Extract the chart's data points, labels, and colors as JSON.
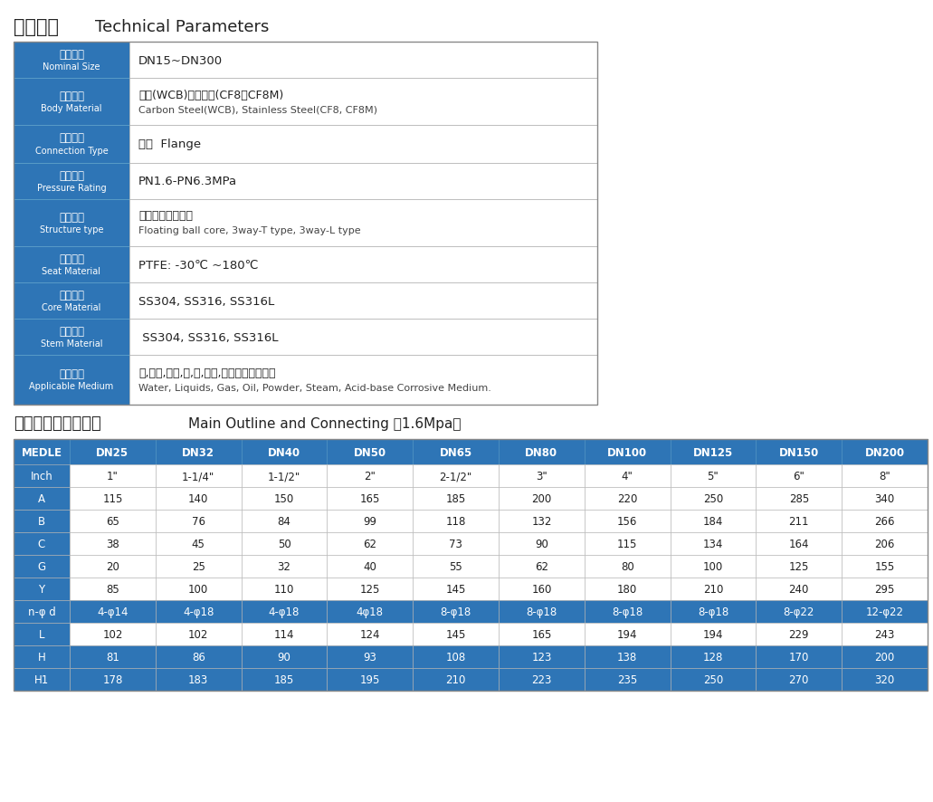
{
  "title_zh": "产品参数",
  "title_en": "Technical Parameters",
  "title2_zh": "主要外形及连接尺寸",
  "title2_en": "Main Outline and Connecting （1.6Mpa）",
  "header_bg": "#2e75b6",
  "border_color": "#aaaaaa",
  "params": [
    {
      "label_zh": "公称通径",
      "label_en": "Nominal Size",
      "value_line1": "DN15~DN300",
      "value_line2": ""
    },
    {
      "label_zh": "阀体材质",
      "label_en": "Body Material",
      "value_line1": "碳钢(WCB)、不锈钢(CF8、CF8M)",
      "value_line2": "Carbon Steel(WCB), Stainless Steel(CF8, CF8M)"
    },
    {
      "label_zh": "连接类型",
      "label_en": "Connection Type",
      "value_line1": "法兰  Flange",
      "value_line2": ""
    },
    {
      "label_zh": "压力等级",
      "label_en": "Pressure Rating",
      "value_line1": "PN1.6-PN6.3MPa",
      "value_line2": ""
    },
    {
      "label_zh": "结构类型",
      "label_en": "Structure type",
      "value_line1": "浮动球芯直动式；",
      "value_line2": "Floating ball core, 3way-T type, 3way-L type"
    },
    {
      "label_zh": "阀座密封",
      "label_en": "Seat Material",
      "value_line1": "PTFE: -30℃ ~180℃",
      "value_line2": ""
    },
    {
      "label_zh": "阀芯材质",
      "label_en": "Core Material",
      "value_line1": "SS304, SS316, SS316L",
      "value_line2": ""
    },
    {
      "label_zh": "阀杆材质",
      "label_en": "Stem Material",
      "value_line1": " SS304, SS316, SS316L",
      "value_line2": ""
    },
    {
      "label_zh": "适用介质",
      "label_en": "Applicable Medium",
      "value_line1": "水,液体,气体,油,粉,蒸汽,酸碱腐蚀性介质。",
      "value_line2": "Water, Liquids, Gas, Oil, Powder, Steam, Acid-base Corrosive Medium."
    }
  ],
  "table2_headers": [
    "MEDLE",
    "DN25",
    "DN32",
    "DN40",
    "DN50",
    "DN65",
    "DN80",
    "DN100",
    "DN125",
    "DN150",
    "DN200"
  ],
  "table2_rows": [
    [
      "Inch",
      "1\"",
      "1-1/4\"",
      "1-1/2\"",
      "2\"",
      "2-1/2\"",
      "3\"",
      "4\"",
      "5\"",
      "6\"",
      "8\""
    ],
    [
      "A",
      "115",
      "140",
      "150",
      "165",
      "185",
      "200",
      "220",
      "250",
      "285",
      "340"
    ],
    [
      "B",
      "65",
      "76",
      "84",
      "99",
      "118",
      "132",
      "156",
      "184",
      "211",
      "266"
    ],
    [
      "C",
      "38",
      "45",
      "50",
      "62",
      "73",
      "90",
      "115",
      "134",
      "164",
      "206"
    ],
    [
      "G",
      "20",
      "25",
      "32",
      "40",
      "55",
      "62",
      "80",
      "100",
      "125",
      "155"
    ],
    [
      "Y",
      "85",
      "100",
      "110",
      "125",
      "145",
      "160",
      "180",
      "210",
      "240",
      "295"
    ],
    [
      "n-φ d",
      "4-φ14",
      "4-φ18",
      "4-φ18",
      "4φ18",
      "8-φ18",
      "8-φ18",
      "8-φ18",
      "8-φ18",
      "8-φ22",
      "12-φ22"
    ],
    [
      "L",
      "102",
      "102",
      "114",
      "124",
      "145",
      "165",
      "194",
      "194",
      "229",
      "243"
    ],
    [
      "H",
      "81",
      "86",
      "90",
      "93",
      "108",
      "123",
      "138",
      "128",
      "170",
      "200"
    ],
    [
      "H1",
      "178",
      "183",
      "185",
      "195",
      "210",
      "223",
      "235",
      "250",
      "270",
      "320"
    ]
  ],
  "bg_color": "#FFFFFF"
}
